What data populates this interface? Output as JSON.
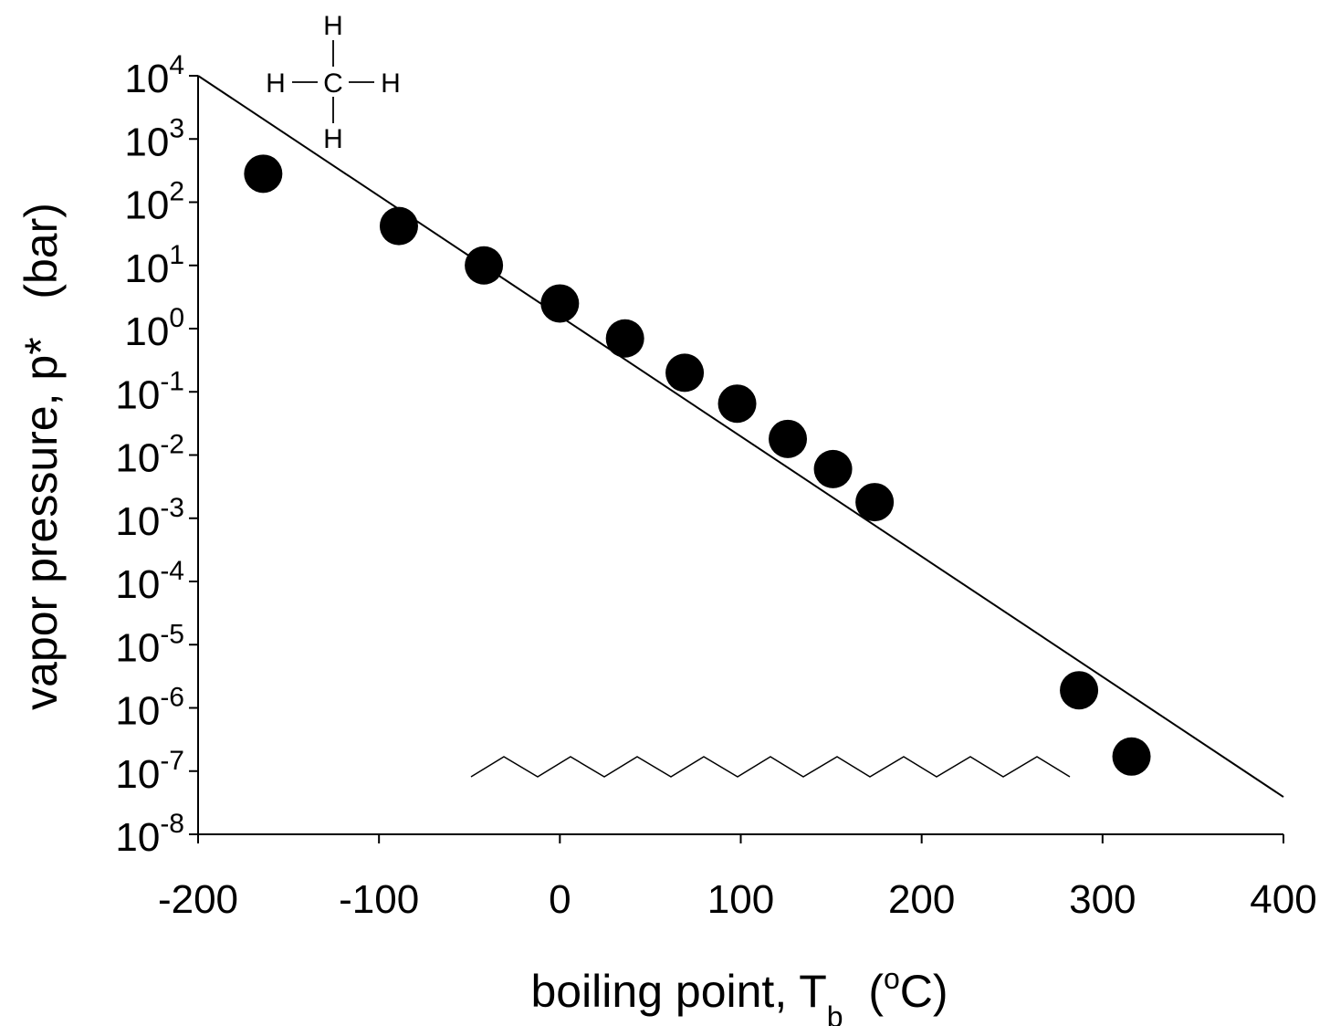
{
  "chart_data": {
    "type": "scatter",
    "xlabel": {
      "main": "boiling point, T",
      "sub": "b",
      "unit_open": "  (",
      "unit_sup": "o",
      "unit_close": "C)"
    },
    "ylabel": "vapor pressure, p*   (bar)",
    "x_ticks": [
      "-200",
      "-100",
      "0",
      "100",
      "200",
      "300",
      "400"
    ],
    "x_tick_values": [
      -200,
      -100,
      0,
      100,
      200,
      300,
      400
    ],
    "y_ticks": [
      {
        "base": "10",
        "exp": "4",
        "value": 4
      },
      {
        "base": "10",
        "exp": "3",
        "value": 3
      },
      {
        "base": "10",
        "exp": "2",
        "value": 2
      },
      {
        "base": "10",
        "exp": "1",
        "value": 1
      },
      {
        "base": "10",
        "exp": "0",
        "value": 0
      },
      {
        "base": "10",
        "exp": "-1",
        "value": -1
      },
      {
        "base": "10",
        "exp": "-2",
        "value": -2
      },
      {
        "base": "10",
        "exp": "-3",
        "value": -3
      },
      {
        "base": "10",
        "exp": "-4",
        "value": -4
      },
      {
        "base": "10",
        "exp": "-5",
        "value": -5
      },
      {
        "base": "10",
        "exp": "-6",
        "value": -6
      },
      {
        "base": "10",
        "exp": "-7",
        "value": -7
      },
      {
        "base": "10",
        "exp": "-8",
        "value": -8
      }
    ],
    "xlim": [
      -200,
      400
    ],
    "ylim_log10": [
      -8,
      4
    ],
    "y_scale": "log",
    "grid": false,
    "legend": "none",
    "points": [
      {
        "x": -164,
        "y": 282.0
      },
      {
        "x": -89,
        "y": 42.0
      },
      {
        "x": -42,
        "y": 10.0
      },
      {
        "x": 0,
        "y": 2.5
      },
      {
        "x": 36,
        "y": 0.7
      },
      {
        "x": 69,
        "y": 0.2
      },
      {
        "x": 98,
        "y": 0.065
      },
      {
        "x": 126,
        "y": 0.018
      },
      {
        "x": 151,
        "y": 0.006
      },
      {
        "x": 174,
        "y": 0.0018
      },
      {
        "x": 287,
        "y": 1.9e-06
      },
      {
        "x": 316,
        "y": 1.7e-07
      }
    ],
    "fit_line": {
      "x": [
        -200,
        400
      ],
      "y": [
        10000.0,
        3.9e-08
      ]
    },
    "annotations": {
      "methane": {
        "atoms": [
          "H",
          "H",
          "C",
          "H",
          "H"
        ]
      }
    },
    "colors": {
      "marker": "#000000",
      "line": "#000000",
      "background": "#ffffff"
    }
  }
}
